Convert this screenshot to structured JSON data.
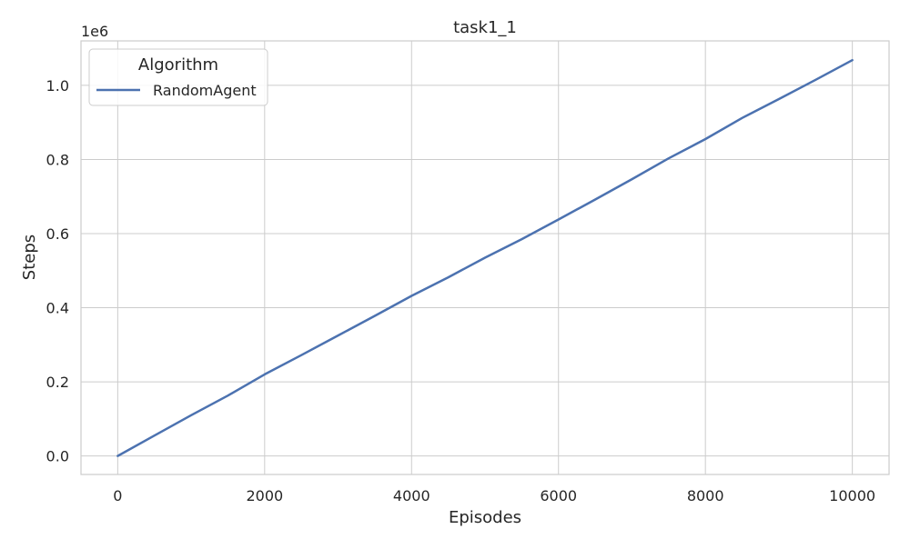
{
  "chart_data": {
    "type": "line",
    "title": "task1_1",
    "xlabel": "Episodes",
    "ylabel": "Steps",
    "y_offset_label": "1e6",
    "xlim": [
      -500,
      10500
    ],
    "ylim": [
      -0.05,
      1.12
    ],
    "x_ticks": [
      0,
      2000,
      4000,
      6000,
      8000,
      10000
    ],
    "x_tick_labels": [
      "0",
      "2000",
      "4000",
      "6000",
      "8000",
      "10000"
    ],
    "y_ticks": [
      0.0,
      0.2,
      0.4,
      0.6,
      0.8,
      1.0
    ],
    "y_tick_labels": [
      "0.0",
      "0.2",
      "0.4",
      "0.6",
      "0.8",
      "1.0"
    ],
    "grid": true,
    "legend": {
      "title": "Algorithm",
      "placement": "top-left"
    },
    "series": [
      {
        "name": "RandomAgent",
        "color": "#4c72b0",
        "x": [
          0,
          500,
          1000,
          1500,
          2000,
          2500,
          3000,
          3500,
          4000,
          4500,
          5000,
          5500,
          6000,
          6500,
          7000,
          7500,
          8000,
          8500,
          9000,
          9500,
          10000
        ],
        "y": [
          0.0,
          0.055,
          0.11,
          0.163,
          0.22,
          0.272,
          0.325,
          0.378,
          0.432,
          0.482,
          0.535,
          0.585,
          0.638,
          0.692,
          0.747,
          0.803,
          0.855,
          0.912,
          0.963,
          1.015,
          1.068
        ]
      }
    ]
  }
}
